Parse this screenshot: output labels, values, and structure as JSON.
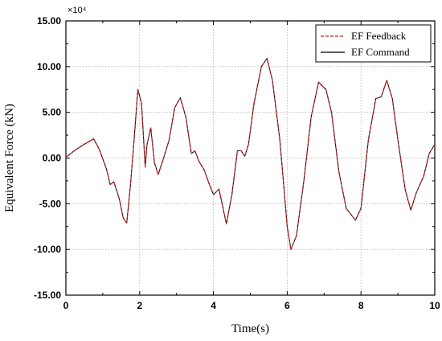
{
  "chart_data": {
    "type": "line",
    "title": "",
    "xlabel": "Time(s)",
    "ylabel": "Equivalent Force (kN)",
    "y_multiplier_label": "×10⁴",
    "xlim": [
      0,
      10
    ],
    "ylim": [
      -15,
      15
    ],
    "x_ticks": [
      0,
      2,
      4,
      6,
      8,
      10
    ],
    "x_tick_labels": [
      "0",
      "2",
      "4",
      "6",
      "8",
      "10"
    ],
    "y_ticks": [
      15,
      10,
      5,
      0,
      -5,
      -10,
      -15
    ],
    "y_tick_labels": [
      "15.00",
      "10.00",
      "5.00",
      "0.00",
      "-5.00",
      "-10.00",
      "-15.00"
    ],
    "grid": true,
    "legend_position": "top-right",
    "x": [
      0.0,
      0.3,
      0.5,
      0.75,
      0.9,
      1.1,
      1.2,
      1.3,
      1.45,
      1.55,
      1.65,
      1.75,
      1.85,
      1.95,
      2.05,
      2.15,
      2.2,
      2.3,
      2.4,
      2.5,
      2.65,
      2.8,
      2.95,
      3.1,
      3.25,
      3.4,
      3.5,
      3.6,
      3.75,
      3.9,
      4.0,
      4.15,
      4.35,
      4.5,
      4.65,
      4.75,
      4.85,
      4.95,
      5.1,
      5.3,
      5.45,
      5.6,
      5.8,
      6.0,
      6.1,
      6.25,
      6.45,
      6.65,
      6.85,
      7.05,
      7.2,
      7.4,
      7.6,
      7.85,
      8.0,
      8.2,
      8.4,
      8.55,
      8.7,
      8.85,
      9.0,
      9.2,
      9.35,
      9.5,
      9.7,
      9.85,
      10.0
    ],
    "series": [
      {
        "name": "EF Feedback",
        "color": "#cc2222",
        "dash": "dashed",
        "values": [
          0.1,
          1.0,
          1.5,
          2.1,
          1.0,
          -1.2,
          -2.9,
          -2.6,
          -4.5,
          -6.5,
          -7.1,
          -3.0,
          2.0,
          7.5,
          6.0,
          -1.0,
          1.5,
          3.3,
          -0.5,
          -1.8,
          0.0,
          2.0,
          5.5,
          6.6,
          4.5,
          0.5,
          0.8,
          -0.3,
          -1.3,
          -3.0,
          -4.0,
          -3.4,
          -7.2,
          -4.0,
          0.8,
          0.8,
          0.2,
          1.5,
          6.0,
          10.0,
          10.9,
          8.5,
          2.0,
          -7.5,
          -10.0,
          -8.5,
          -2.5,
          4.5,
          8.3,
          7.5,
          5.0,
          -1.5,
          -5.5,
          -6.8,
          -5.5,
          2.0,
          6.5,
          6.7,
          8.5,
          6.5,
          2.0,
          -3.5,
          -5.7,
          -3.8,
          -2.0,
          0.5,
          1.5
        ]
      },
      {
        "name": "EF Command",
        "color": "#000000",
        "dash": "solid",
        "values": [
          0.1,
          1.0,
          1.5,
          2.1,
          1.0,
          -1.2,
          -2.9,
          -2.6,
          -4.5,
          -6.5,
          -7.1,
          -3.0,
          2.0,
          7.5,
          6.0,
          -1.0,
          1.5,
          3.3,
          -0.5,
          -1.8,
          0.0,
          2.0,
          5.5,
          6.6,
          4.5,
          0.5,
          0.8,
          -0.3,
          -1.3,
          -3.0,
          -4.0,
          -3.4,
          -7.2,
          -4.0,
          0.8,
          0.8,
          0.2,
          1.5,
          6.0,
          10.0,
          10.9,
          8.5,
          2.0,
          -7.5,
          -10.0,
          -8.5,
          -2.5,
          4.5,
          8.3,
          7.5,
          5.0,
          -1.5,
          -5.5,
          -6.8,
          -5.5,
          2.0,
          6.5,
          6.7,
          8.5,
          6.5,
          2.0,
          -3.5,
          -5.7,
          -3.8,
          -2.0,
          0.5,
          1.5
        ]
      }
    ]
  }
}
